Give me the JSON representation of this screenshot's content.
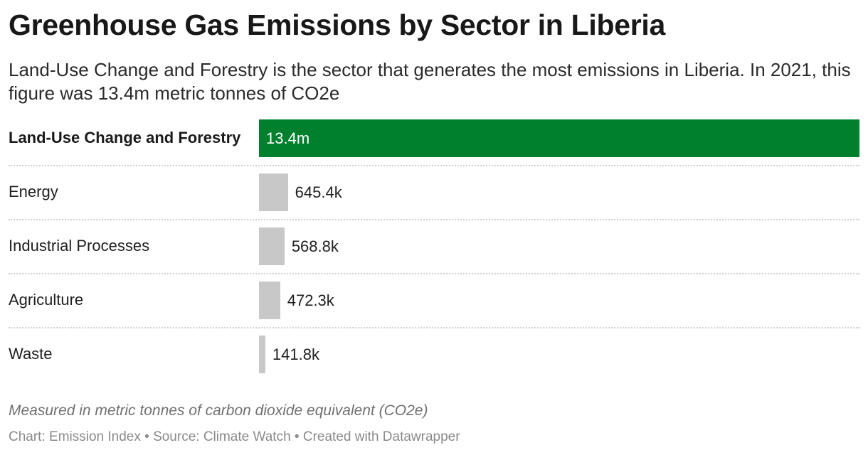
{
  "header": {
    "title": "Greenhouse Gas Emissions by Sector in Liberia",
    "subtitle": "Land-Use Change and Forestry is the sector that generates the most emissions in Liberia. In 2021, this figure was 13.4m metric tonnes of CO2e"
  },
  "chart_data": {
    "type": "bar",
    "orientation": "horizontal",
    "title": "Greenhouse Gas Emissions by Sector in Liberia",
    "categories": [
      "Land-Use Change and Forestry",
      "Energy",
      "Industrial Processes",
      "Agriculture",
      "Waste"
    ],
    "values": [
      13400000,
      645400,
      568800,
      472300,
      141800
    ],
    "value_labels": [
      "13.4m",
      "645.4k",
      "568.8k",
      "472.3k",
      "141.8k"
    ],
    "highlight_index": 0,
    "colors": {
      "highlight": "#007f2d",
      "default": "#c8c8c8"
    },
    "grid": false
  },
  "footer": {
    "note": "Measured in metric tonnes of carbon dioxide equivalent (CO2e)",
    "credits": "Chart: Emission Index • Source: Climate Watch • Created with Datawrapper"
  }
}
